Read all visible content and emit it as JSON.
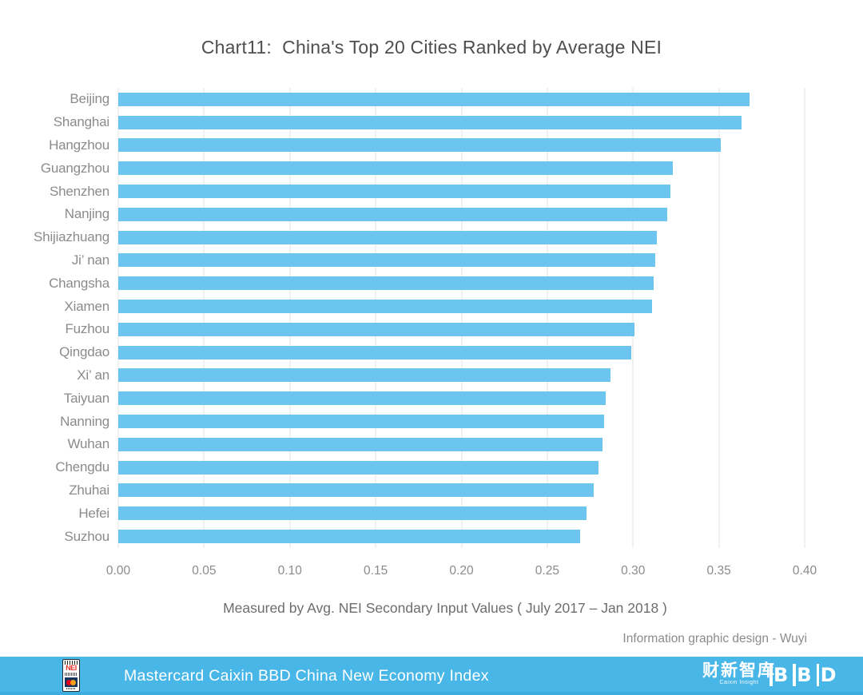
{
  "chart_data": {
    "type": "bar",
    "orientation": "horizontal",
    "title": "Chart11:  China's Top 20 Cities Ranked by Average NEI",
    "xlabel": "Measured by Avg. NEI Secondary Input Values ( July 2017 – Jan 2018 )",
    "xlim": [
      0,
      0.4
    ],
    "xticks": [
      "0.00",
      "0.05",
      "0.10",
      "0.15",
      "0.20",
      "0.25",
      "0.30",
      "0.35",
      "0.40"
    ],
    "grid": true,
    "legend": false,
    "bar_color": "#6cc5ee",
    "categories": [
      "Beijing",
      "Shanghai",
      "Hangzhou",
      "Guangzhou",
      "Shenzhen",
      "Nanjing",
      "Shijiazhuang",
      "Ji’ nan",
      "Changsha",
      "Xiamen",
      "Fuzhou",
      "Qingdao",
      "Xi’ an",
      "Taiyuan",
      "Nanning",
      "Wuhan",
      "Chengdu",
      "Zhuhai",
      "Hefei",
      "Suzhou"
    ],
    "values": [
      0.368,
      0.363,
      0.351,
      0.323,
      0.322,
      0.32,
      0.314,
      0.313,
      0.312,
      0.311,
      0.301,
      0.299,
      0.287,
      0.284,
      0.283,
      0.282,
      0.28,
      0.277,
      0.273,
      0.269
    ]
  },
  "credit": "Information graphic design - Wuyi",
  "footer": {
    "background": "#49b6e8",
    "text": "Mastercard Caixin BBD China New Economy Index",
    "logos": {
      "nei": "NEI",
      "caixin": "财新智库",
      "caixin_sub": "Caixin Insight",
      "bbd": "BBD"
    }
  }
}
